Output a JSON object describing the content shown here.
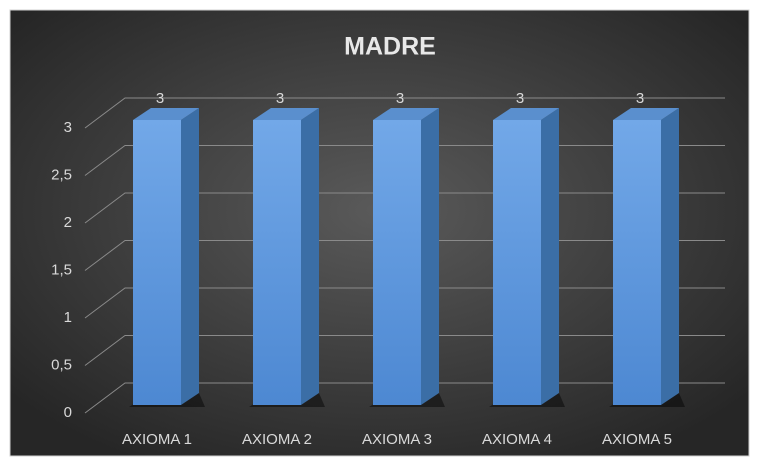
{
  "chart_data": {
    "type": "bar",
    "title": "MADRE",
    "categories": [
      "AXIOMA 1",
      "AXIOMA 2",
      "AXIOMA 3",
      "AXIOMA 4",
      "AXIOMA 5"
    ],
    "values": [
      3,
      3,
      3,
      3,
      3
    ],
    "color": "#5b9bd5",
    "ylim": [
      0,
      3
    ],
    "yticks": [
      0,
      {
        "value": 0.5,
        "label": "0,5"
      },
      1,
      {
        "value": 1.5,
        "label": "1,5"
      },
      2,
      {
        "value": 2.5,
        "label": "2,5"
      },
      3
    ],
    "grid": true
  }
}
